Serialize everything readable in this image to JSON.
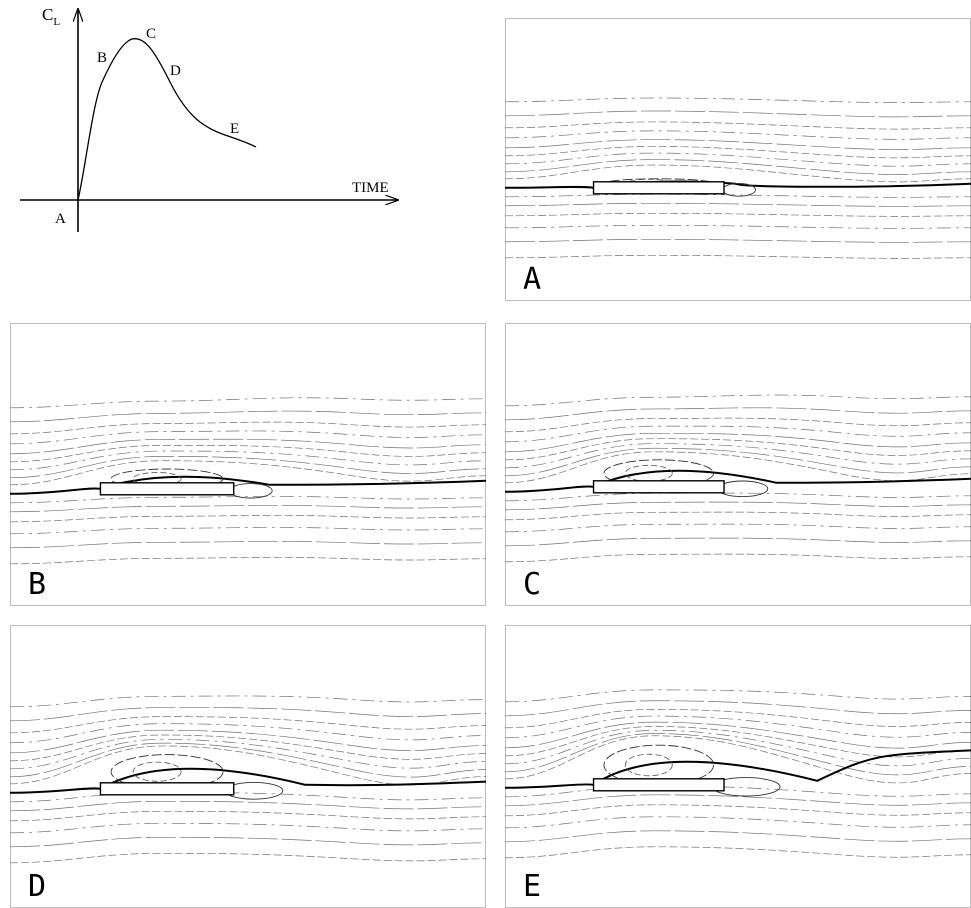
{
  "sketch": {
    "y_axis_label": "C",
    "y_axis_subscript": "L",
    "x_axis_label": "TIME",
    "points": [
      {
        "label": "A",
        "t": 0.0,
        "cl": 0.0
      },
      {
        "label": "B",
        "t": 0.12,
        "cl": 0.62
      },
      {
        "label": "C",
        "t": 0.33,
        "cl": 1.0
      },
      {
        "label": "D",
        "t": 0.52,
        "cl": 0.78
      },
      {
        "label": "E",
        "t": 0.85,
        "cl": 0.32
      }
    ]
  },
  "panels": [
    {
      "id": "A",
      "label": "A"
    },
    {
      "id": "B",
      "label": "B"
    },
    {
      "id": "C",
      "label": "C"
    },
    {
      "id": "D",
      "label": "D"
    },
    {
      "id": "E",
      "label": "E"
    }
  ]
}
